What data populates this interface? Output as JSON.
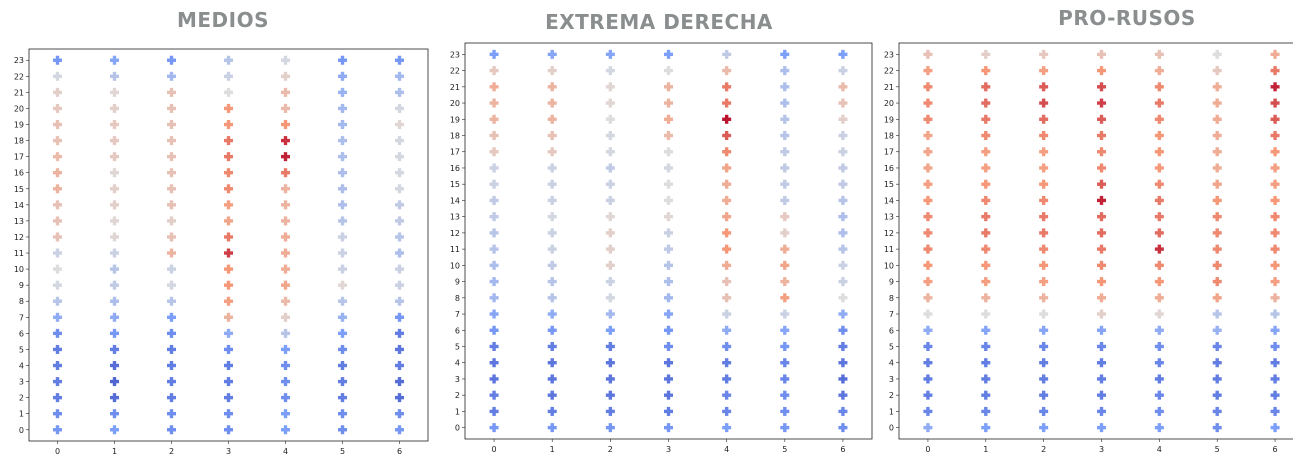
{
  "colors": {
    "title": "#8a8e8e",
    "colormap": "coolwarm",
    "colormap_low": "#3b4cc0",
    "colormap_mid": "#dddddd",
    "colormap_high": "#b40426"
  },
  "chart_data": [
    {
      "type": "scatter",
      "marker": "plus",
      "title": "MEDIOS",
      "xlabel": "",
      "ylabel": "",
      "x_ticks": [
        0,
        1,
        2,
        3,
        4,
        5,
        6
      ],
      "y_ticks": [
        0,
        1,
        2,
        3,
        4,
        5,
        6,
        7,
        8,
        9,
        10,
        11,
        12,
        13,
        14,
        15,
        16,
        17,
        18,
        19,
        20,
        21,
        22,
        23
      ],
      "xlim": [
        -0.5,
        6.5
      ],
      "ylim": [
        -0.7,
        23.7
      ],
      "grid": false,
      "color_scale": [
        -1,
        1
      ],
      "values_by_column": [
        [
          -0.55,
          -0.6,
          -0.7,
          -0.7,
          -0.7,
          -0.7,
          -0.6,
          -0.4,
          -0.2,
          -0.05,
          0.0,
          -0.1,
          0.2,
          0.2,
          0.2,
          0.3,
          0.3,
          0.25,
          0.2,
          0.2,
          0.15,
          0.1,
          -0.05,
          -0.55
        ],
        [
          -0.5,
          -0.6,
          -0.8,
          -0.85,
          -0.8,
          -0.7,
          -0.55,
          -0.4,
          -0.25,
          -0.15,
          -0.2,
          -0.1,
          0.05,
          0.05,
          0.1,
          0.1,
          0.05,
          0.15,
          0.15,
          0.15,
          0.1,
          0.05,
          -0.2,
          -0.45
        ],
        [
          -0.6,
          -0.6,
          -0.7,
          -0.7,
          -0.7,
          -0.7,
          -0.6,
          -0.5,
          -0.2,
          -0.05,
          -0.1,
          0.3,
          0.2,
          0.1,
          0.2,
          0.2,
          0.2,
          0.2,
          0.2,
          0.2,
          0.2,
          0.2,
          -0.3,
          -0.55
        ],
        [
          -0.6,
          -0.6,
          -0.7,
          -0.7,
          -0.7,
          -0.6,
          -0.4,
          0.3,
          0.45,
          0.5,
          0.5,
          0.8,
          0.6,
          0.4,
          0.45,
          0.55,
          0.55,
          0.6,
          0.6,
          0.5,
          0.5,
          0.0,
          -0.1,
          -0.2
        ],
        [
          -0.5,
          -0.5,
          -0.6,
          -0.6,
          -0.6,
          -0.5,
          -0.2,
          0.1,
          0.25,
          0.4,
          0.35,
          0.35,
          0.35,
          0.3,
          0.3,
          0.3,
          0.6,
          0.9,
          0.85,
          0.5,
          0.25,
          0.25,
          0.1,
          -0.05
        ],
        [
          -0.6,
          -0.6,
          -0.7,
          -0.7,
          -0.7,
          -0.6,
          -0.5,
          -0.35,
          -0.2,
          0.05,
          -0.1,
          -0.1,
          -0.1,
          -0.2,
          -0.25,
          -0.25,
          -0.25,
          -0.25,
          -0.25,
          -0.3,
          -0.3,
          -0.35,
          -0.4,
          -0.55
        ],
        [
          -0.55,
          -0.6,
          -0.8,
          -0.8,
          -0.7,
          -0.75,
          -0.7,
          -0.55,
          -0.2,
          -0.1,
          -0.1,
          -0.25,
          -0.2,
          -0.15,
          -0.15,
          -0.05,
          -0.05,
          -0.05,
          -0.05,
          0.05,
          -0.05,
          -0.25,
          -0.3,
          -0.55
        ]
      ]
    },
    {
      "type": "scatter",
      "marker": "plus",
      "title": "EXTREMA DERECHA",
      "xlabel": "",
      "ylabel": "",
      "x_ticks": [
        0,
        1,
        2,
        3,
        4,
        5,
        6
      ],
      "y_ticks": [
        0,
        1,
        2,
        3,
        4,
        5,
        6,
        7,
        8,
        9,
        10,
        11,
        12,
        13,
        14,
        15,
        16,
        17,
        18,
        19,
        20,
        21,
        22,
        23
      ],
      "xlim": [
        -0.5,
        6.5
      ],
      "ylim": [
        -0.7,
        23.7
      ],
      "grid": false,
      "color_scale": [
        -1,
        1
      ],
      "values_by_column": [
        [
          -0.55,
          -0.7,
          -0.7,
          -0.75,
          -0.75,
          -0.7,
          -0.55,
          -0.45,
          -0.3,
          -0.3,
          -0.25,
          -0.2,
          -0.2,
          -0.15,
          -0.15,
          -0.1,
          -0.1,
          0.15,
          0.2,
          0.3,
          0.3,
          0.35,
          0.15,
          -0.5
        ],
        [
          -0.55,
          -0.7,
          -0.75,
          -0.75,
          -0.75,
          -0.7,
          -0.55,
          -0.4,
          -0.2,
          -0.2,
          -0.15,
          -0.1,
          -0.1,
          -0.05,
          -0.1,
          -0.1,
          -0.1,
          0.15,
          0.2,
          0.3,
          0.3,
          0.3,
          0.1,
          -0.45
        ],
        [
          -0.55,
          -0.7,
          -0.75,
          -0.75,
          -0.75,
          -0.7,
          -0.5,
          -0.3,
          -0.05,
          -0.1,
          0.1,
          0.1,
          0.1,
          0.05,
          -0.1,
          -0.1,
          -0.15,
          -0.05,
          -0.05,
          0.0,
          0.05,
          0.05,
          -0.05,
          -0.45
        ],
        [
          -0.55,
          -0.7,
          -0.75,
          -0.75,
          -0.75,
          -0.6,
          -0.55,
          -0.45,
          -0.3,
          -0.25,
          -0.2,
          -0.15,
          -0.1,
          0.05,
          0.0,
          0.0,
          -0.05,
          0.0,
          0.25,
          0.35,
          0.3,
          0.3,
          0.0,
          -0.5
        ],
        [
          -0.5,
          -0.65,
          -0.65,
          -0.7,
          -0.7,
          -0.6,
          -0.4,
          -0.1,
          0.2,
          0.2,
          0.35,
          0.5,
          0.5,
          0.4,
          0.35,
          0.35,
          0.4,
          0.55,
          0.7,
          0.95,
          0.6,
          0.6,
          0.25,
          -0.15
        ],
        [
          -0.55,
          -0.6,
          -0.6,
          -0.65,
          -0.65,
          -0.55,
          -0.45,
          -0.1,
          0.45,
          0.3,
          0.4,
          0.35,
          0.1,
          0.15,
          -0.15,
          -0.15,
          -0.15,
          -0.15,
          -0.2,
          -0.2,
          -0.25,
          -0.25,
          -0.25,
          -0.5
        ],
        [
          -0.6,
          -0.65,
          -0.75,
          -0.8,
          -0.75,
          -0.7,
          -0.6,
          -0.4,
          0.0,
          -0.1,
          -0.1,
          -0.2,
          -0.25,
          -0.25,
          -0.2,
          -0.15,
          -0.15,
          -0.1,
          -0.1,
          0.1,
          0.2,
          0.25,
          -0.1,
          -0.5
        ]
      ]
    },
    {
      "type": "scatter",
      "marker": "plus",
      "title": "PRO-RUSOS",
      "xlabel": "",
      "ylabel": "",
      "x_ticks": [
        0,
        1,
        2,
        3,
        4,
        5,
        6
      ],
      "y_ticks": [
        0,
        1,
        2,
        3,
        4,
        5,
        6,
        7,
        8,
        9,
        10,
        11,
        12,
        13,
        14,
        15,
        16,
        17,
        18,
        19,
        20,
        21,
        22,
        23
      ],
      "xlim": [
        -0.5,
        6.5
      ],
      "ylim": [
        -0.7,
        23.7
      ],
      "grid": false,
      "color_scale": [
        -1,
        1
      ],
      "values_by_column": [
        [
          -0.4,
          -0.65,
          -0.7,
          -0.7,
          -0.7,
          -0.65,
          -0.4,
          0.0,
          0.3,
          0.45,
          0.5,
          0.55,
          0.55,
          0.55,
          0.5,
          0.45,
          0.4,
          0.4,
          0.4,
          0.55,
          0.55,
          0.55,
          0.45,
          0.2
        ],
        [
          -0.5,
          -0.65,
          -0.7,
          -0.7,
          -0.7,
          -0.65,
          -0.45,
          0.0,
          0.3,
          0.45,
          0.5,
          0.55,
          0.6,
          0.6,
          0.55,
          0.5,
          0.45,
          0.45,
          0.55,
          0.6,
          0.65,
          0.65,
          0.5,
          0.1
        ],
        [
          -0.5,
          -0.65,
          -0.7,
          -0.7,
          -0.7,
          -0.65,
          -0.45,
          0.0,
          0.3,
          0.45,
          0.5,
          0.55,
          0.6,
          0.6,
          0.55,
          0.5,
          0.45,
          0.45,
          0.55,
          0.65,
          0.75,
          0.7,
          0.45,
          0.15
        ],
        [
          -0.5,
          -0.65,
          -0.7,
          -0.7,
          -0.7,
          -0.65,
          -0.45,
          0.1,
          0.35,
          0.5,
          0.55,
          0.6,
          0.65,
          0.65,
          0.9,
          0.7,
          0.55,
          0.55,
          0.6,
          0.7,
          0.8,
          0.75,
          0.5,
          0.2
        ],
        [
          -0.5,
          -0.6,
          -0.65,
          -0.7,
          -0.65,
          -0.6,
          -0.4,
          0.05,
          0.35,
          0.5,
          0.55,
          0.85,
          0.65,
          0.6,
          0.6,
          0.55,
          0.5,
          0.5,
          0.5,
          0.55,
          0.6,
          0.55,
          0.35,
          0.2
        ],
        [
          -0.6,
          -0.65,
          -0.7,
          -0.7,
          -0.7,
          -0.65,
          -0.35,
          -0.2,
          0.4,
          0.55,
          0.55,
          0.55,
          0.55,
          0.55,
          0.5,
          0.4,
          0.35,
          0.35,
          0.35,
          0.35,
          0.35,
          0.35,
          0.15,
          0.0
        ],
        [
          -0.5,
          -0.65,
          -0.7,
          -0.7,
          -0.7,
          -0.6,
          -0.45,
          -0.2,
          0.3,
          0.45,
          0.5,
          0.55,
          0.55,
          0.55,
          0.5,
          0.45,
          0.45,
          0.5,
          0.6,
          0.7,
          0.75,
          0.9,
          0.6,
          0.35
        ]
      ]
    }
  ]
}
